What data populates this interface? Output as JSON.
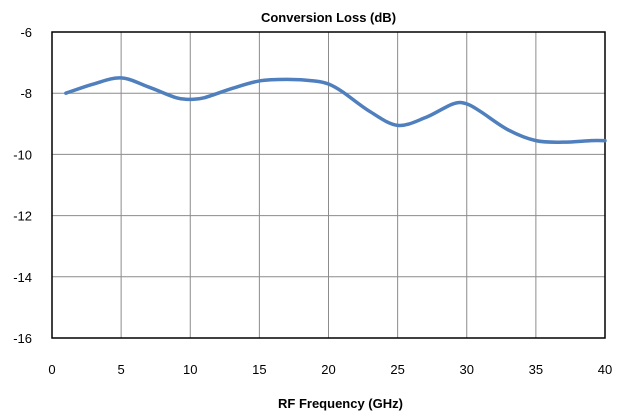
{
  "chart_data": {
    "type": "line",
    "title": "Conversion Loss (dB)",
    "xlabel": "RF Frequency (GHz)",
    "ylabel": "",
    "xlim": [
      0,
      40
    ],
    "ylim": [
      -16,
      -6
    ],
    "xticks": [
      0,
      5,
      10,
      15,
      20,
      25,
      30,
      35,
      40
    ],
    "yticks": [
      -6,
      -8,
      -10,
      -12,
      -14,
      -16
    ],
    "grid": true,
    "series": [
      {
        "color": "#4f7fbd",
        "x": [
          1,
          3,
          5,
          7,
          9,
          10,
          11,
          13,
          15,
          17,
          19,
          20,
          21,
          23,
          25,
          27,
          29,
          30,
          31,
          33,
          35,
          37,
          39,
          40
        ],
        "y": [
          -8.0,
          -7.7,
          -7.5,
          -7.8,
          -8.15,
          -8.2,
          -8.15,
          -7.85,
          -7.6,
          -7.55,
          -7.6,
          -7.7,
          -7.95,
          -8.6,
          -9.05,
          -8.8,
          -8.35,
          -8.35,
          -8.6,
          -9.2,
          -9.55,
          -9.6,
          -9.55,
          -9.55
        ]
      }
    ]
  }
}
